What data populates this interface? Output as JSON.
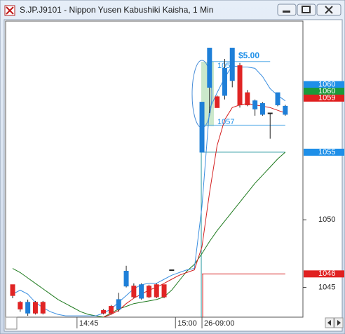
{
  "window": {
    "title": "S.JP.J9101 - Nippon Yusen Kabushiki Kaisha, 1 Min"
  },
  "chart_data": {
    "type": "candlestick",
    "xlim": [
      -0.93,
      38.33
    ],
    "xticks": [
      {
        "value": 8.5,
        "label": "14:45"
      },
      {
        "value": 21.5,
        "label": "15:00"
      },
      {
        "value": 25,
        "label": "26-09:00"
      }
    ],
    "ylim": [
      1042.8,
      1064.7
    ],
    "yticks": [
      1045,
      1050
    ],
    "up_color": "#1e7fd8",
    "down_color": "#e02424",
    "open": [
      1045.2,
      1043.9,
      1043.1,
      1043.9,
      1043.9,
      null,
      null,
      null,
      null,
      null,
      null,
      null,
      1043.3,
      1043.6,
      1043.4,
      1045.1,
      1045.1,
      1044.2,
      1045.1,
      1045.2,
      1045.2,
      1046.3,
      null,
      null,
      null,
      1055,
      1059.8,
      1059.1,
      1059.2,
      1060.3,
      1061.4,
      1059.4,
      1058.2,
      1057.8,
      1057.9,
      1058.5,
      1057.8
    ],
    "high": [
      1045.2,
      1044.0,
      1044.1,
      1044.0,
      1044.0,
      null,
      null,
      null,
      null,
      null,
      null,
      null,
      1043.4,
      1043.7,
      1044.6,
      1046.6,
      1045.3,
      1045.3,
      1045.2,
      1045.3,
      1045.2,
      1046.3,
      null,
      null,
      null,
      1058.7,
      1062.7,
      1059.2,
      1061.9,
      1062.7,
      1061.6,
      1059.6,
      1058.9,
      1058.7,
      1057.9,
      1059.4,
      1058.5
    ],
    "low": [
      1044.2,
      1043.2,
      1042.9,
      1043.0,
      1043.0,
      null,
      null,
      null,
      null,
      null,
      null,
      null,
      1043.0,
      1043.0,
      1043.2,
      1045.0,
      1044.2,
      1044.1,
      1044.2,
      1044.2,
      1044.2,
      1046.3,
      null,
      null,
      null,
      1055,
      1057.9,
      1058.3,
      1058.9,
      1059.8,
      1058.3,
      1058.4,
      1057.7,
      1057.7,
      1056.0,
      1058.4,
      1057.7
    ],
    "close": [
      1044.4,
      1043.4,
      1043.9,
      1043.1,
      1043.1,
      null,
      null,
      null,
      null,
      null,
      null,
      null,
      1043.1,
      1043.1,
      1044.1,
      1046.2,
      1044.3,
      1045.2,
      1044.3,
      1044.3,
      1044.3,
      1046.3,
      null,
      null,
      null,
      1058.7,
      1062.7,
      1058.3,
      1061.2,
      1062.7,
      1058.5,
      1058.5,
      1058.8,
      1058.6,
      1057.9,
      1059.4,
      1058.4
    ],
    "indicators": [
      {
        "color": "#1e7a1e",
        "values": [
          1046.4,
          1046.1,
          1045.7,
          1045.3,
          1044.9,
          1044.5,
          1044.1,
          1043.8,
          1043.5,
          1043.2,
          1043.0,
          1042.9,
          1042.8,
          1043.1,
          1043.4,
          1043.6,
          1043.8,
          1043.9,
          1044.0,
          1044.1,
          1044.3,
          1044.8,
          1045.5,
          1046.2,
          1046.7,
          1047.5,
          1048.4,
          1049.2,
          1049.9,
          1050.6,
          1051.3,
          1052.0,
          1052.7,
          1053.3,
          1053.9,
          1054.5,
          1055.0
        ]
      },
      {
        "color": "#3a8ee0",
        "values": [
          1044.5,
          1044.8,
          1044.5,
          1043.9,
          1043.5,
          1043.2,
          1043.0,
          1042.9,
          1042.9,
          1042.9,
          1042.9,
          1042.9,
          1043.1,
          1043.4,
          1043.9,
          1044.4,
          1044.9,
          1045.2,
          1045.3,
          1045.3,
          1045.6,
          1045.9,
          1046.1,
          1046.3,
          1046.4,
          1051.0,
          1058.2,
          1059.4,
          1060.5,
          1061.4,
          1061.3,
          1061.3,
          1061.2,
          1060.6,
          1059.7,
          1059.2,
          1058.8
        ]
      },
      {
        "color": "#d42020",
        "values": [
          null,
          null,
          null,
          null,
          null,
          null,
          null,
          null,
          null,
          null,
          null,
          null,
          1042.8,
          1043.0,
          1043.3,
          1043.8,
          1044.2,
          1044.5,
          1044.8,
          1045.0,
          1045.3,
          1045.6,
          1045.9,
          1046.1,
          1046.3,
          1048.0,
          1052.0,
          1055.5,
          1057.4,
          1058.3,
          1058.5,
          1058.6,
          1058.5,
          1058.4,
          1058.3,
          1058.1,
          1057.9
        ]
      }
    ],
    "levels": [
      {
        "value": 1055,
        "color": "#2a9aa0",
        "start": 25,
        "end": 36
      },
      {
        "value": 1046,
        "color": "#d42020",
        "start": 25,
        "end": 36
      },
      {
        "value": 1057,
        "color": "#5aaee8",
        "start": 25,
        "end": 36
      },
      {
        "value": 1061.7,
        "color": "#5aaee8",
        "start": 26,
        "end": 34
      }
    ],
    "price_markers": [
      {
        "value": 1060,
        "color": "#1e8fe8"
      },
      {
        "value": 1060,
        "color": "#1a9a3a"
      },
      {
        "value": 1059,
        "color": "#e02020"
      },
      {
        "value": 1055,
        "color": "#1e8fe8"
      },
      {
        "value": 1046,
        "color": "#e02020"
      }
    ],
    "annotations": [
      "$5.00",
      "105",
      "1057"
    ]
  }
}
